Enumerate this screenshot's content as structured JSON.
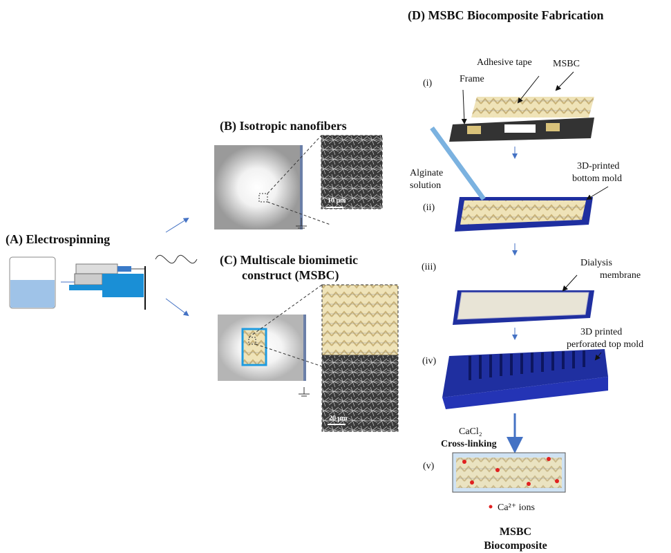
{
  "panels": {
    "a": {
      "title": "(A) Electrospinning"
    },
    "b": {
      "title": "(B) Isotropic nanofibers",
      "scale_bar": "10 μm"
    },
    "c": {
      "title_lines": [
        "(C) Multiscale biomimetic",
        "construct (MSBC)"
      ],
      "scale_bar": "20 μm"
    },
    "d": {
      "title": "(D) MSBC Biocomposite Fabrication",
      "step_i": {
        "label": "(i)",
        "frame": "Frame",
        "tape": "Adhesive tape",
        "msbc": "MSBC"
      },
      "step_ii": {
        "label": "(ii)",
        "alginate": [
          "Alginate",
          "solution"
        ],
        "mold": [
          "3D-printed",
          "bottom mold"
        ]
      },
      "step_iii": {
        "label": "(iii)",
        "membrane": [
          "Dialysis",
          "membrane"
        ]
      },
      "step_iv": {
        "label": "(iv)",
        "top_mold": [
          "3D printed",
          "perforated top mold"
        ]
      },
      "crosslink": {
        "reagent": "CaCl₂",
        "label": "Cross-linking"
      },
      "step_v": {
        "label": "(v)",
        "ions": "Ca²⁺ ions"
      },
      "result": [
        "MSBC",
        "Biocomposite"
      ]
    }
  }
}
